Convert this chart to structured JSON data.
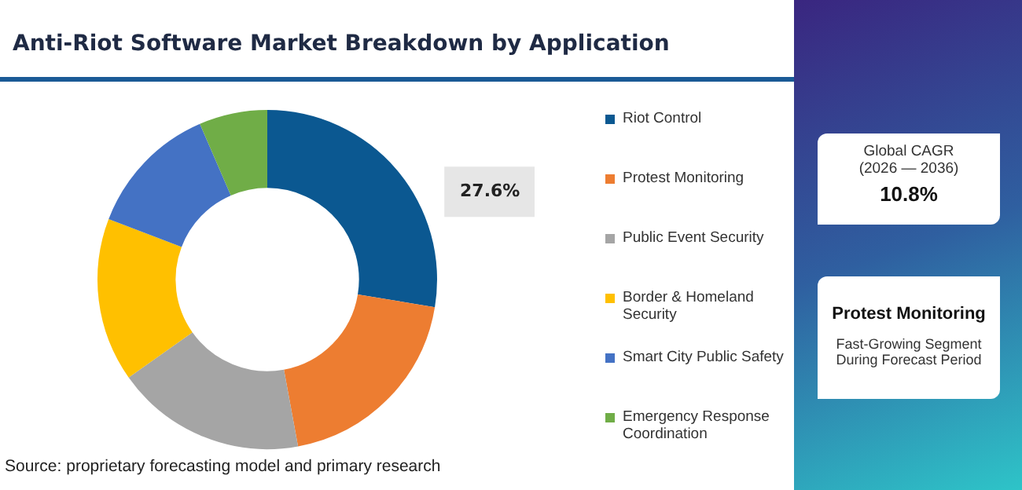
{
  "chart_data": {
    "type": "donut",
    "title": "Anti-Riot Software Market Breakdown by Application",
    "categories": [
      "Riot Control",
      "Protest Monitoring",
      "Public Event Security",
      "Border & Homeland Security",
      "Smart City Public Safety",
      "Emergency Response Coordination"
    ],
    "values": [
      27.6,
      19.5,
      18.1,
      15.6,
      12.7,
      6.5
    ],
    "colors": [
      "#0b5891",
      "#ed7d31",
      "#a5a5a5",
      "#ffc000",
      "#4472c4",
      "#70ad47"
    ],
    "value_labels": [
      "27.6%",
      null,
      null,
      null,
      null,
      null
    ],
    "legend": "right",
    "annotations": [
      "Source: proprietary forecasting model and primary research",
      "Global CAGR",
      "(2026 — 2036)",
      "10.8%",
      "Protest Monitoring",
      "Fast-Growing Segment During Forecast Period"
    ]
  }
}
